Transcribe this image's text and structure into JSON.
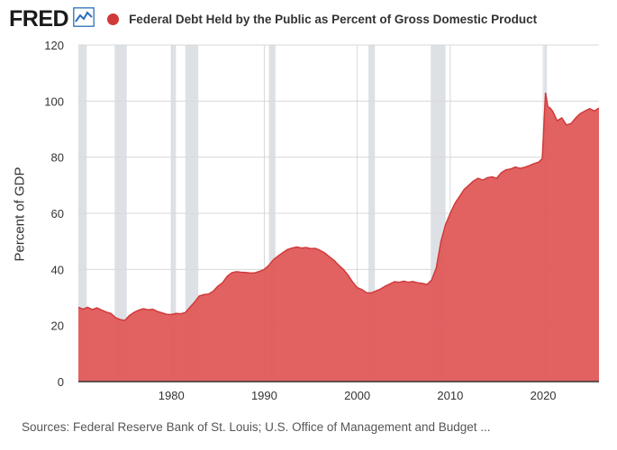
{
  "header": {
    "logo_text": "FRED",
    "logo_icon": "line-chart-icon",
    "title": "Federal Debt Held by the Public as Percent of Gross Domestic Product"
  },
  "footer": {
    "sources": "Sources: Federal Reserve Bank of St. Louis; U.S. Office of Management and Budget ..."
  },
  "colors": {
    "series": "#d13a3a",
    "fill": "#e05a5a",
    "recession": "#dde1e6",
    "grid": "#d8d8d8"
  },
  "chart_data": {
    "type": "area",
    "title": "Federal Debt Held by the Public as Percent of Gross Domestic Product",
    "ylabel": "Percent of GDP",
    "xlabel": "",
    "xlim": [
      1970.0,
      2026.0
    ],
    "ylim": [
      0,
      120
    ],
    "x_ticks": [
      1980,
      1990,
      2000,
      2010,
      2020
    ],
    "y_ticks": [
      0,
      20,
      40,
      60,
      80,
      100,
      120
    ],
    "grid": true,
    "recessions": [
      [
        1969.9,
        1970.9
      ],
      [
        1973.9,
        1975.2
      ],
      [
        1980.0,
        1980.5
      ],
      [
        1981.5,
        1982.9
      ],
      [
        1990.5,
        1991.2
      ],
      [
        2001.2,
        2001.9
      ],
      [
        2007.9,
        2009.5
      ],
      [
        2020.1,
        2020.4
      ]
    ],
    "series": [
      {
        "name": "Federal Debt Held by the Public as Percent of Gross Domestic Product",
        "x": [
          1970.0,
          1970.5,
          1971.0,
          1971.5,
          1972.0,
          1972.5,
          1973.0,
          1973.5,
          1974.0,
          1974.5,
          1975.0,
          1975.5,
          1976.0,
          1976.5,
          1977.0,
          1977.5,
          1978.0,
          1978.5,
          1979.0,
          1979.5,
          1980.0,
          1980.5,
          1981.0,
          1981.5,
          1982.0,
          1982.5,
          1983.0,
          1983.5,
          1984.0,
          1984.5,
          1985.0,
          1985.5,
          1986.0,
          1986.5,
          1987.0,
          1987.5,
          1988.0,
          1988.5,
          1989.0,
          1989.5,
          1990.0,
          1990.5,
          1991.0,
          1991.5,
          1992.0,
          1992.5,
          1993.0,
          1993.5,
          1994.0,
          1994.5,
          1995.0,
          1995.5,
          1996.0,
          1996.5,
          1997.0,
          1997.5,
          1998.0,
          1998.5,
          1999.0,
          1999.5,
          2000.0,
          2000.5,
          2001.0,
          2001.5,
          2002.0,
          2002.5,
          2003.0,
          2003.5,
          2004.0,
          2004.5,
          2005.0,
          2005.5,
          2006.0,
          2006.5,
          2007.0,
          2007.5,
          2008.0,
          2008.5,
          2009.0,
          2009.5,
          2010.0,
          2010.5,
          2011.0,
          2011.5,
          2012.0,
          2012.5,
          2013.0,
          2013.5,
          2014.0,
          2014.5,
          2015.0,
          2015.5,
          2016.0,
          2016.5,
          2017.0,
          2017.5,
          2018.0,
          2018.5,
          2019.0,
          2019.5,
          2019.9,
          2020.25,
          2020.5,
          2020.75,
          2021.0,
          2021.5,
          2022.0,
          2022.5,
          2023.0,
          2023.5,
          2024.0,
          2024.5,
          2025.0,
          2025.5,
          2026.0
        ],
        "y": [
          26.5,
          25.8,
          26.5,
          25.7,
          26.3,
          25.5,
          24.8,
          24.3,
          22.8,
          22.1,
          21.8,
          23.6,
          24.7,
          25.5,
          26.0,
          25.6,
          25.8,
          25.0,
          24.5,
          24.0,
          23.9,
          24.3,
          24.2,
          24.6,
          26.5,
          28.3,
          30.5,
          31.0,
          31.2,
          32.2,
          34.0,
          35.2,
          37.5,
          38.8,
          39.2,
          39.0,
          38.9,
          38.7,
          38.8,
          39.3,
          40.0,
          41.5,
          43.5,
          44.8,
          46.0,
          47.1,
          47.6,
          48.0,
          47.6,
          47.8,
          47.4,
          47.5,
          46.8,
          45.9,
          44.5,
          43.2,
          41.5,
          40.0,
          38.0,
          35.5,
          33.5,
          32.8,
          31.7,
          31.6,
          32.3,
          33.0,
          34.0,
          34.8,
          35.6,
          35.4,
          35.8,
          35.4,
          35.7,
          35.2,
          35.0,
          34.6,
          36.2,
          40.5,
          50.0,
          56.0,
          60.0,
          63.5,
          66.0,
          68.5,
          70.0,
          71.5,
          72.5,
          71.8,
          72.7,
          73.0,
          72.5,
          74.5,
          75.5,
          75.8,
          76.5,
          76.0,
          76.4,
          77.0,
          77.7,
          78.2,
          79.5,
          103.0,
          98.0,
          97.5,
          96.5,
          93.0,
          94.0,
          91.5,
          92.0,
          94.0,
          95.6,
          96.5,
          97.3,
          96.5,
          97.5
        ]
      }
    ]
  }
}
